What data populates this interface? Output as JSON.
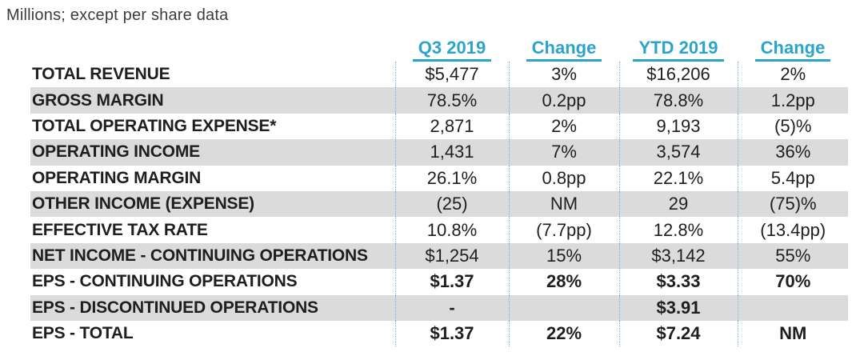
{
  "chart_data": {
    "type": "table",
    "title": "Millions; except per share data",
    "columns": [
      "Q3 2019",
      "Change",
      "YTD 2019",
      "Change"
    ],
    "rows": [
      {
        "label": "TOTAL REVENUE",
        "values": [
          "$5,477",
          "3%",
          "$16,206",
          "2%"
        ],
        "shaded": false,
        "bold_values": false
      },
      {
        "label": "GROSS MARGIN",
        "values": [
          "78.5%",
          "0.2pp",
          "78.8%",
          "1.2pp"
        ],
        "shaded": true,
        "bold_values": false
      },
      {
        "label": "TOTAL OPERATING EXPENSE*",
        "values": [
          "2,871",
          "2%",
          "9,193",
          "(5)%"
        ],
        "shaded": false,
        "bold_values": false
      },
      {
        "label": "OPERATING INCOME",
        "values": [
          "1,431",
          "7%",
          "3,574",
          "36%"
        ],
        "shaded": true,
        "bold_values": false
      },
      {
        "label": "OPERATING MARGIN",
        "values": [
          "26.1%",
          "0.8pp",
          "22.1%",
          "5.4pp"
        ],
        "shaded": false,
        "bold_values": false
      },
      {
        "label": "OTHER INCOME (EXPENSE)",
        "values": [
          "(25)",
          "NM",
          "29",
          "(75)%"
        ],
        "shaded": true,
        "bold_values": false
      },
      {
        "label": "EFFECTIVE TAX RATE",
        "values": [
          "10.8%",
          "(7.7pp)",
          "12.8%",
          "(13.4pp)"
        ],
        "shaded": false,
        "bold_values": false
      },
      {
        "label": "NET INCOME - CONTINUING OPERATIONS",
        "values": [
          "$1,254",
          "15%",
          "$3,142",
          "55%"
        ],
        "shaded": true,
        "bold_values": false
      },
      {
        "label": "EPS - CONTINUING OPERATIONS",
        "values": [
          "$1.37",
          "28%",
          "$3.33",
          "70%"
        ],
        "shaded": false,
        "bold_values": true
      },
      {
        "label": "EPS - DISCONTINUED OPERATIONS",
        "values": [
          "-",
          "",
          "$3.91",
          ""
        ],
        "shaded": true,
        "bold_values": true
      },
      {
        "label": "EPS - TOTAL",
        "values": [
          "$1.37",
          "22%",
          "$7.24",
          "NM"
        ],
        "shaded": false,
        "bold_values": true
      }
    ],
    "layout": {
      "shaded_row_indexes": [
        1,
        3,
        5,
        7,
        9
      ],
      "bold_value_row_indexes": [
        8,
        9,
        10
      ],
      "column_separators": "dotted"
    }
  },
  "colors": {
    "accent": "#2ba4cd",
    "dotted": "#5fbcd8",
    "shade": "#dbdbdb",
    "ink": "#1e1e1e",
    "title_ink": "#3c3c3c"
  }
}
